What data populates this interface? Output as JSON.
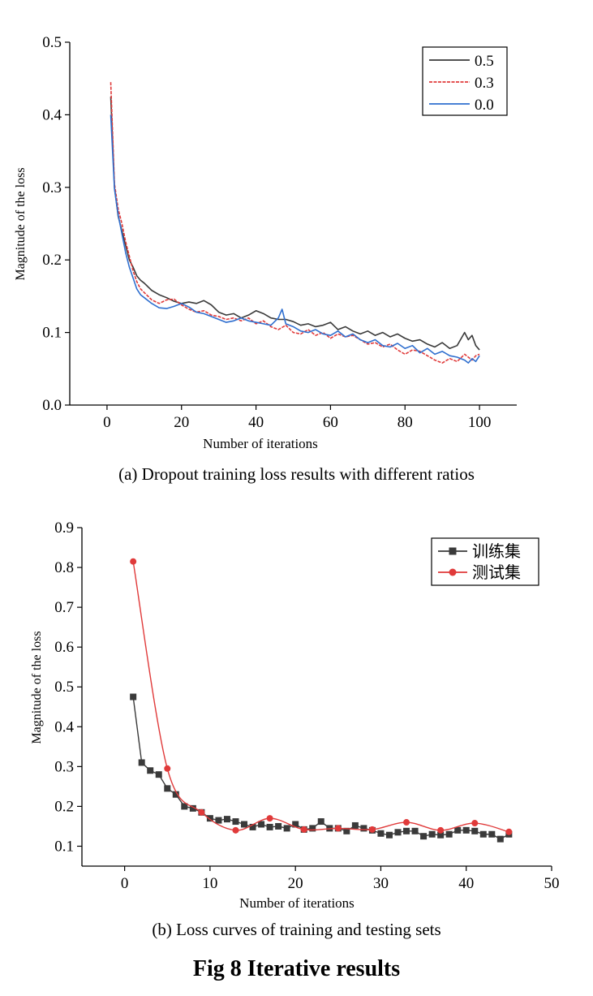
{
  "chart_data": [
    {
      "type": "line",
      "caption": "(a) Dropout training loss results with different ratios",
      "xlabel": "Number of iterations",
      "ylabel": "Magnitude of the loss",
      "xlim": [
        -10,
        110
      ],
      "ylim": [
        0,
        0.5
      ],
      "xticks": [
        0,
        20,
        40,
        60,
        80,
        100
      ],
      "xtick_labels": [
        "0",
        "20",
        "40",
        "60",
        "80",
        "100"
      ],
      "yticks": [
        0.0,
        0.1,
        0.2,
        0.3,
        0.4,
        0.5
      ],
      "ytick_labels": [
        "0.0",
        "0.1",
        "0.2",
        "0.3",
        "0.4",
        "0.5"
      ],
      "legend_position": "top-right",
      "series": [
        {
          "name": "0.5",
          "color": "#3a3a3a",
          "x": [
            1,
            2,
            3,
            4,
            5,
            6,
            7,
            8,
            9,
            10,
            12,
            14,
            16,
            18,
            20,
            22,
            24,
            26,
            28,
            30,
            32,
            34,
            36,
            38,
            40,
            42,
            44,
            46,
            48,
            50,
            52,
            54,
            56,
            58,
            60,
            62,
            64,
            66,
            68,
            70,
            72,
            74,
            76,
            78,
            80,
            82,
            84,
            86,
            88,
            90,
            92,
            94,
            96,
            97,
            98,
            99,
            100
          ],
          "values": [
            0.425,
            0.3,
            0.26,
            0.24,
            0.22,
            0.2,
            0.19,
            0.178,
            0.172,
            0.168,
            0.158,
            0.152,
            0.148,
            0.143,
            0.14,
            0.142,
            0.14,
            0.144,
            0.138,
            0.128,
            0.124,
            0.126,
            0.12,
            0.124,
            0.13,
            0.126,
            0.12,
            0.118,
            0.118,
            0.115,
            0.11,
            0.112,
            0.108,
            0.11,
            0.114,
            0.104,
            0.108,
            0.102,
            0.098,
            0.102,
            0.096,
            0.1,
            0.094,
            0.098,
            0.092,
            0.088,
            0.09,
            0.084,
            0.08,
            0.086,
            0.078,
            0.082,
            0.1,
            0.09,
            0.096,
            0.082,
            0.076
          ]
        },
        {
          "name": "0.3",
          "color": "#e03a3a",
          "x": [
            1,
            2,
            3,
            4,
            5,
            6,
            7,
            8,
            9,
            10,
            12,
            14,
            16,
            18,
            20,
            22,
            24,
            26,
            28,
            30,
            32,
            34,
            36,
            38,
            40,
            42,
            44,
            46,
            48,
            50,
            52,
            54,
            56,
            58,
            60,
            62,
            64,
            66,
            68,
            70,
            72,
            74,
            76,
            78,
            80,
            82,
            84,
            86,
            88,
            90,
            92,
            94,
            96,
            97,
            98,
            99,
            100
          ],
          "values": [
            0.445,
            0.305,
            0.27,
            0.25,
            0.225,
            0.205,
            0.185,
            0.17,
            0.16,
            0.155,
            0.145,
            0.14,
            0.145,
            0.146,
            0.138,
            0.132,
            0.128,
            0.13,
            0.124,
            0.122,
            0.118,
            0.12,
            0.116,
            0.12,
            0.112,
            0.116,
            0.108,
            0.104,
            0.11,
            0.1,
            0.098,
            0.104,
            0.096,
            0.1,
            0.092,
            0.098,
            0.094,
            0.096,
            0.09,
            0.084,
            0.086,
            0.08,
            0.084,
            0.076,
            0.07,
            0.076,
            0.074,
            0.068,
            0.062,
            0.058,
            0.064,
            0.06,
            0.07,
            0.066,
            0.062,
            0.068,
            0.07
          ]
        },
        {
          "name": "0.0",
          "color": "#2f6fcf",
          "x": [
            1,
            2,
            3,
            4,
            5,
            6,
            7,
            8,
            9,
            10,
            12,
            14,
            16,
            18,
            20,
            22,
            24,
            26,
            28,
            30,
            32,
            34,
            36,
            38,
            40,
            42,
            44,
            46,
            47,
            48,
            50,
            52,
            54,
            56,
            58,
            60,
            62,
            64,
            66,
            68,
            70,
            72,
            74,
            76,
            78,
            80,
            82,
            84,
            86,
            88,
            90,
            92,
            94,
            96,
            97,
            98,
            99,
            100
          ],
          "values": [
            0.4,
            0.298,
            0.262,
            0.236,
            0.21,
            0.19,
            0.175,
            0.16,
            0.152,
            0.148,
            0.14,
            0.134,
            0.133,
            0.136,
            0.14,
            0.135,
            0.128,
            0.126,
            0.122,
            0.118,
            0.114,
            0.116,
            0.12,
            0.116,
            0.114,
            0.112,
            0.11,
            0.12,
            0.132,
            0.112,
            0.108,
            0.102,
            0.1,
            0.104,
            0.098,
            0.096,
            0.102,
            0.094,
            0.098,
            0.09,
            0.086,
            0.09,
            0.082,
            0.08,
            0.085,
            0.078,
            0.082,
            0.072,
            0.078,
            0.07,
            0.074,
            0.068,
            0.066,
            0.062,
            0.058,
            0.064,
            0.06,
            0.068
          ]
        }
      ]
    },
    {
      "type": "line",
      "caption": "(b) Loss curves of training and testing sets",
      "xlabel": "Number of iterations",
      "ylabel": "Magnitude of the loss",
      "xlim": [
        -5,
        50
      ],
      "ylim": [
        0.05,
        0.9
      ],
      "xticks": [
        0,
        10,
        20,
        30,
        40,
        50
      ],
      "xtick_labels": [
        "0",
        "10",
        "20",
        "30",
        "40",
        "50"
      ],
      "yticks": [
        0.1,
        0.2,
        0.3,
        0.4,
        0.5,
        0.6,
        0.7,
        0.8,
        0.9
      ],
      "ytick_labels": [
        "0.1",
        "0.2",
        "0.3",
        "0.4",
        "0.5",
        "0.6",
        "0.7",
        "0.8",
        "0.9"
      ],
      "legend_position": "top-right",
      "series": [
        {
          "name": "训练集",
          "color": "#3a3a3a",
          "marker": "square",
          "x": [
            1,
            2,
            3,
            4,
            5,
            6,
            7,
            8,
            9,
            10,
            11,
            12,
            13,
            14,
            15,
            16,
            17,
            18,
            19,
            20,
            21,
            22,
            23,
            24,
            25,
            26,
            27,
            28,
            29,
            30,
            31,
            32,
            33,
            34,
            35,
            36,
            37,
            38,
            39,
            40,
            41,
            42,
            43,
            44,
            45
          ],
          "values": [
            0.475,
            0.31,
            0.29,
            0.28,
            0.245,
            0.23,
            0.2,
            0.195,
            0.185,
            0.17,
            0.165,
            0.168,
            0.162,
            0.155,
            0.148,
            0.155,
            0.148,
            0.15,
            0.145,
            0.155,
            0.142,
            0.145,
            0.162,
            0.145,
            0.145,
            0.138,
            0.152,
            0.145,
            0.14,
            0.132,
            0.128,
            0.135,
            0.138,
            0.138,
            0.125,
            0.13,
            0.128,
            0.13,
            0.14,
            0.14,
            0.138,
            0.13,
            0.13,
            0.118,
            0.13
          ]
        },
        {
          "name": "测试集",
          "color": "#e03a3a",
          "marker": "circle",
          "x": [
            1,
            5,
            9,
            13,
            17,
            21,
            25,
            29,
            33,
            37,
            41,
            45
          ],
          "values": [
            0.815,
            0.295,
            0.185,
            0.14,
            0.17,
            0.142,
            0.145,
            0.142,
            0.16,
            0.14,
            0.158,
            0.136
          ]
        }
      ]
    }
  ],
  "figure_title": "Fig 8 Iterative results"
}
